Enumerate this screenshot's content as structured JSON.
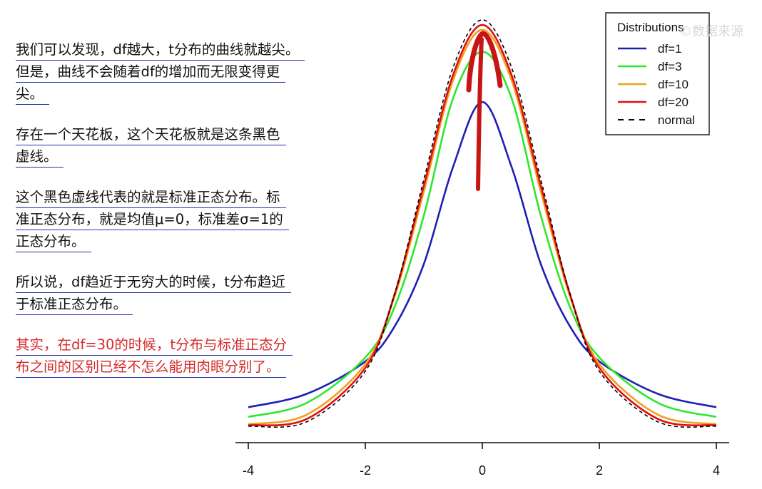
{
  "notes": [
    {
      "lines": [
        "我们可以发现，df越大，t分布的曲线就越尖。",
        "但是，曲线不会随着df的增加而无限变得更",
        "尖。"
      ]
    },
    {
      "lines": [
        "存在一个天花板，这个天花板就是这条黑色",
        "虚线。"
      ]
    },
    {
      "lines": [
        "这个黑色虚线代表的就是标准正态分布。标",
        "准正态分布，就是均值μ=0，标准差σ=1的",
        "正态分布。"
      ]
    },
    {
      "lines": [
        "所以说，df趋近于无穷大的时候，t分布趋近",
        "于标准正态分布。"
      ]
    },
    {
      "lines": [
        "其实，在df=30的时候，t分布与标准正态分",
        "布之间的区别已经不怎么能用肉眼分别了。"
      ],
      "color": "#d42a2a"
    }
  ],
  "watermark": "©数据来源",
  "chart_data": {
    "type": "line",
    "title": "",
    "xlabel": "",
    "ylabel": "",
    "xlim": [
      -4,
      4
    ],
    "x_ticks": [
      "-4",
      "-2",
      "0",
      "2",
      "4"
    ],
    "ylim": [
      0,
      0.41
    ],
    "legend": {
      "title": "Distributions",
      "position": "top-right",
      "entries": [
        "df=1",
        "df=3",
        "df=10",
        "df=20",
        "normal"
      ]
    },
    "series": [
      {
        "name": "df=1",
        "color": "#1f1fb4",
        "dashed": false,
        "x": [
          -4,
          -3,
          -2,
          -1.5,
          -1,
          -0.5,
          0,
          0.5,
          1,
          1.5,
          2,
          3,
          4
        ],
        "y": [
          0.0187,
          0.0318,
          0.0637,
          0.0979,
          0.1592,
          0.2546,
          0.3183,
          0.2546,
          0.1592,
          0.0979,
          0.0637,
          0.0318,
          0.0187
        ]
      },
      {
        "name": "df=3",
        "color": "#2ee62e",
        "dashed": false,
        "x": [
          -4,
          -3,
          -2,
          -1.5,
          -1,
          -0.5,
          0,
          0.5,
          1,
          1.5,
          2,
          3,
          4
        ],
        "y": [
          0.0092,
          0.023,
          0.0675,
          0.1169,
          0.2067,
          0.322,
          0.3676,
          0.322,
          0.2067,
          0.1169,
          0.0675,
          0.023,
          0.0092
        ]
      },
      {
        "name": "df=10",
        "color": "#f0a020",
        "dashed": false,
        "x": [
          -4,
          -3,
          -2,
          -1.5,
          -1,
          -0.5,
          0,
          0.5,
          1,
          1.5,
          2,
          3,
          4
        ],
        "y": [
          0.002,
          0.0114,
          0.0611,
          0.1274,
          0.2304,
          0.3397,
          0.3891,
          0.3397,
          0.2304,
          0.1274,
          0.0611,
          0.0114,
          0.002
        ]
      },
      {
        "name": "df=20",
        "color": "#e01010",
        "dashed": false,
        "x": [
          -4,
          -3,
          -2,
          -1.5,
          -1,
          -0.5,
          0,
          0.5,
          1,
          1.5,
          2,
          3,
          4
        ],
        "y": [
          0.0009,
          0.0072,
          0.0574,
          0.1294,
          0.236,
          0.3447,
          0.394,
          0.3447,
          0.236,
          0.1294,
          0.0574,
          0.0072,
          0.0009
        ]
      },
      {
        "name": "normal",
        "color": "#000000",
        "dashed": true,
        "x": [
          -4,
          -3,
          -2,
          -1.5,
          -1,
          -0.5,
          0,
          0.5,
          1,
          1.5,
          2,
          3,
          4
        ],
        "y": [
          0.0001,
          0.0044,
          0.054,
          0.1295,
          0.242,
          0.3521,
          0.3989,
          0.3521,
          0.242,
          0.1295,
          0.054,
          0.0044,
          0.0001
        ]
      }
    ]
  }
}
